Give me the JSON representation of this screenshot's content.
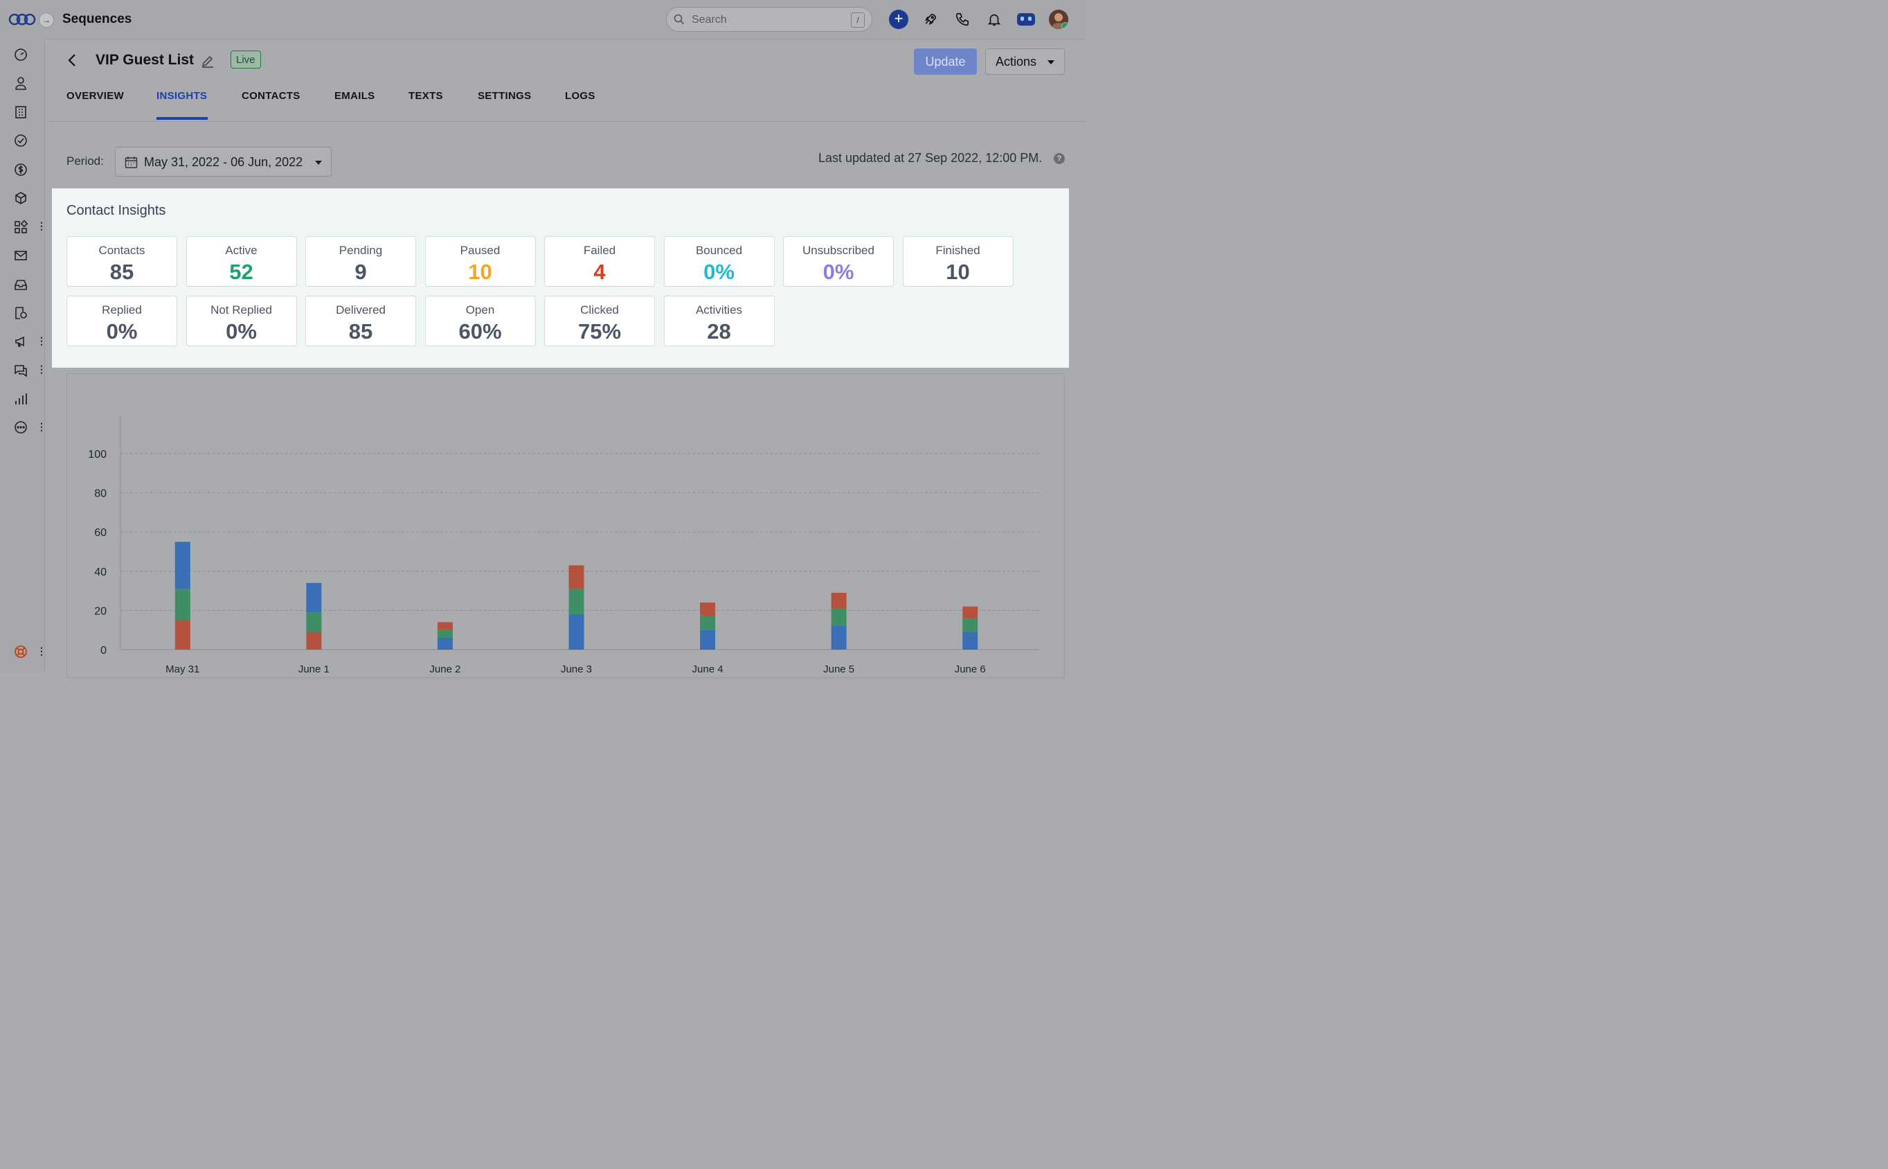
{
  "app": {
    "title": "Sequences"
  },
  "search": {
    "placeholder": "Search",
    "shortcut": "/"
  },
  "topbar_icons": [
    "add-icon",
    "rocket-icon",
    "phone-icon",
    "bell-icon",
    "bot-icon",
    "avatar"
  ],
  "sidebar_icons": [
    "dashboard-icon",
    "contacts-icon",
    "companies-icon",
    "tasks-icon",
    "deals-icon",
    "products-icon",
    "apps-icon",
    "email-icon",
    "inbox-icon",
    "sequences-icon",
    "campaigns-icon",
    "chat-icon",
    "reports-icon",
    "more-icon",
    "help-icon"
  ],
  "sequence": {
    "title": "VIP Guest List",
    "status": "Live"
  },
  "buttons": {
    "update": "Update",
    "actions": "Actions"
  },
  "tabs": [
    {
      "label": "OVERVIEW",
      "active": false
    },
    {
      "label": "INSIGHTS",
      "active": true
    },
    {
      "label": "CONTACTS",
      "active": false
    },
    {
      "label": "EMAILS",
      "active": false
    },
    {
      "label": "TEXTS",
      "active": false
    },
    {
      "label": "SETTINGS",
      "active": false
    },
    {
      "label": "LOGS",
      "active": false
    }
  ],
  "period": {
    "label": "Period:",
    "value": "May 31, 2022 - 06 Jun, 2022"
  },
  "last_updated": "Last updated at 27 Sep 2022, 12:00 PM.",
  "contact_insights": {
    "title": "Contact Insights",
    "cards": [
      {
        "label": "Contacts",
        "value": "85",
        "color": "#4b5563"
      },
      {
        "label": "Active",
        "value": "52",
        "color": "#22a06b"
      },
      {
        "label": "Pending",
        "value": "9",
        "color": "#4b5563"
      },
      {
        "label": "Paused",
        "value": "10",
        "color": "#f5a524"
      },
      {
        "label": "Failed",
        "value": "4",
        "color": "#dc3b1f"
      },
      {
        "label": "Bounced",
        "value": "0%",
        "color": "#22b8cf"
      },
      {
        "label": "Unsubscribed",
        "value": "0%",
        "color": "#8b7fd9"
      },
      {
        "label": "Finished",
        "value": "10",
        "color": "#4b5563"
      },
      {
        "label": "Replied",
        "value": "0%",
        "color": "#4b5563"
      },
      {
        "label": "Not Replied",
        "value": "0%",
        "color": "#4b5563"
      },
      {
        "label": "Delivered",
        "value": "85",
        "color": "#4b5563"
      },
      {
        "label": "Open",
        "value": "60%",
        "color": "#4b5563"
      },
      {
        "label": "Clicked",
        "value": "75%",
        "color": "#4b5563"
      },
      {
        "label": "Activities",
        "value": "28",
        "color": "#4b5563"
      }
    ]
  },
  "chart_data": {
    "type": "bar",
    "stacked": true,
    "categories": [
      "May 31",
      "June 1",
      "June 2",
      "June 3",
      "June 4",
      "June 5",
      "June 6"
    ],
    "series": [
      {
        "color": "#b5523e",
        "values": [
          15,
          9,
          4,
          12,
          7,
          8,
          6
        ]
      },
      {
        "color": "#3e8f65",
        "values": [
          16,
          10,
          4,
          13,
          7,
          9,
          7
        ]
      },
      {
        "color": "#3a6fb8",
        "values": [
          24,
          15,
          6,
          18,
          10,
          12,
          9
        ]
      }
    ],
    "series_order_by_category": [
      [
        "#b5523e",
        "#3e8f65",
        "#3a6fb8"
      ],
      [
        "#b5523e",
        "#3e8f65",
        "#3a6fb8"
      ],
      [
        "#3a6fb8",
        "#3e8f65",
        "#b5523e"
      ],
      [
        "#3a6fb8",
        "#3e8f65",
        "#b5523e"
      ],
      [
        "#3a6fb8",
        "#3e8f65",
        "#b5523e"
      ],
      [
        "#3a6fb8",
        "#3e8f65",
        "#b5523e"
      ],
      [
        "#3a6fb8",
        "#3e8f65",
        "#b5523e"
      ]
    ],
    "ylim": [
      0,
      120
    ],
    "yticks": [
      0,
      20,
      40,
      60,
      80,
      100
    ],
    "grid": true
  }
}
